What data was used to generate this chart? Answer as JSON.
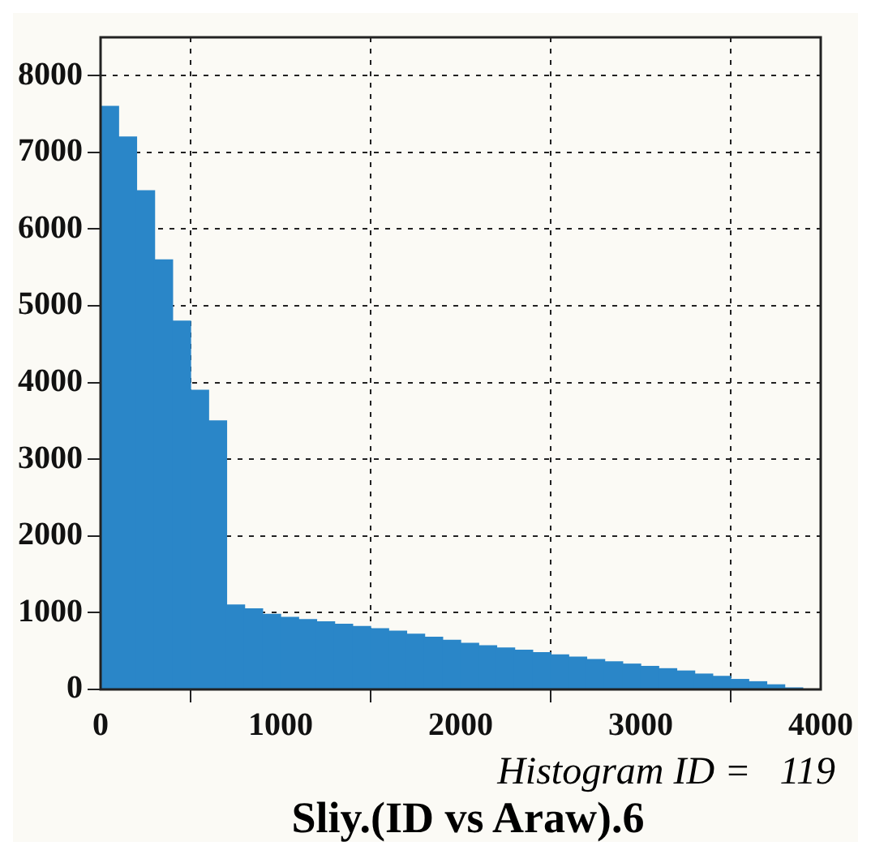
{
  "chart_data": {
    "type": "histogram",
    "title": "Sliy.(ID vs Araw).6",
    "annotations": [
      "Histogram ID =   119"
    ],
    "bins": [
      0,
      100,
      200,
      300,
      400,
      500,
      600,
      700,
      800,
      900,
      1000,
      1100,
      1200,
      1300,
      1400,
      1500,
      1600,
      1700,
      1800,
      1900,
      2000,
      2100,
      2200,
      2300,
      2400,
      2500,
      2600,
      2700,
      2800,
      2900,
      3000,
      3100,
      3200,
      3300,
      3400,
      3500,
      3600,
      3700,
      3800,
      3900,
      4000
    ],
    "values": [
      7600,
      7200,
      6500,
      5600,
      4800,
      3900,
      3500,
      1100,
      1050,
      980,
      940,
      910,
      880,
      850,
      820,
      790,
      760,
      720,
      680,
      640,
      600,
      570,
      540,
      510,
      480,
      450,
      420,
      390,
      360,
      330,
      300,
      270,
      240,
      200,
      170,
      130,
      100,
      60,
      20,
      0
    ],
    "color": "#2a86c8",
    "xlim": [
      0,
      4000
    ],
    "xticks": [
      0,
      1000,
      2000,
      3000,
      4000
    ],
    "ylim": [
      0,
      8500
    ],
    "yticks": [
      0,
      1000,
      2000,
      3000,
      4000,
      5000,
      6000,
      7000,
      8000
    ],
    "grid": true,
    "legend": false
  }
}
